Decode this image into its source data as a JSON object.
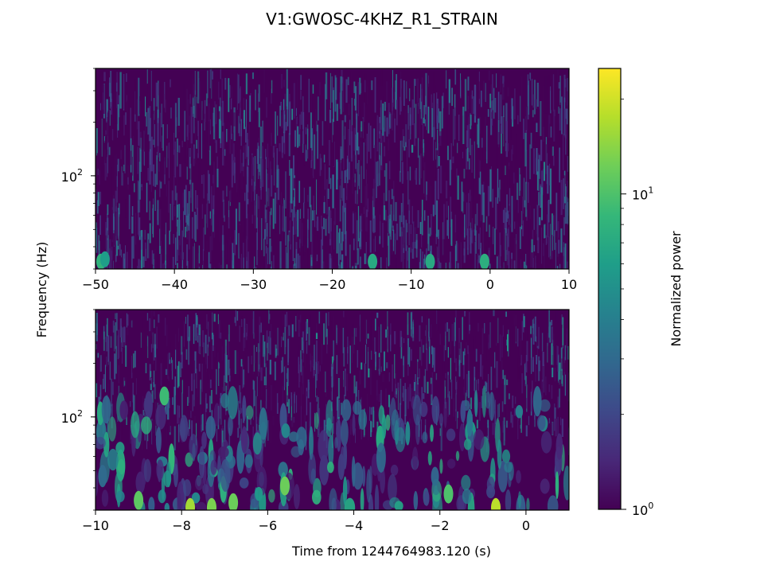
{
  "figure": {
    "title": "V1:GWOSC-4KHZ_R1_STRAIN",
    "ylabel": "Frequency (Hz)",
    "xlabel": "Time from 1244764983.120 (s)"
  },
  "colormap": {
    "name": "viridis",
    "stops": [
      "#440154",
      "#482878",
      "#3e4989",
      "#31688e",
      "#26828e",
      "#1f9e89",
      "#35b779",
      "#6ece58",
      "#b5de2b",
      "#fde725"
    ]
  },
  "colorbar": {
    "label": "Normalized power",
    "scale": "log",
    "range": [
      1,
      25
    ],
    "ticks": [
      {
        "value": 1,
        "base": "10",
        "exp": "0"
      },
      {
        "value": 10,
        "base": "10",
        "exp": "1"
      }
    ]
  },
  "chart_data": [
    {
      "type": "heatmap",
      "name": "top-panel",
      "x_range": [
        -50,
        10
      ],
      "y_range": [
        30,
        400
      ],
      "y_scale": "log",
      "x_ticks": [
        "−50",
        "−40",
        "−30",
        "−20",
        "−10",
        "0",
        "10"
      ],
      "x_tick_values": [
        -50,
        -40,
        -30,
        -20,
        -10,
        0,
        10
      ],
      "y_ticks": [
        {
          "value": 100,
          "base": "10",
          "exp": "2"
        }
      ],
      "texture": "fine-vertical-streaks",
      "mean_power": 1.6,
      "peak_power": 8,
      "hotspots": [
        {
          "t": -49.3,
          "f": 33,
          "power": 8
        },
        {
          "t": -48.8,
          "f": 34,
          "power": 6
        },
        {
          "t": -14.9,
          "f": 33,
          "power": 7
        },
        {
          "t": -7.6,
          "f": 33,
          "power": 7
        },
        {
          "t": -0.7,
          "f": 33,
          "power": 7.5
        }
      ]
    },
    {
      "type": "heatmap",
      "name": "bottom-panel",
      "x_range": [
        -10,
        1
      ],
      "y_range": [
        30,
        400
      ],
      "y_scale": "log",
      "x_ticks": [
        "−10",
        "−8",
        "−6",
        "−4",
        "−2",
        "0"
      ],
      "x_tick_values": [
        -10,
        -8,
        -6,
        -4,
        -2,
        0
      ],
      "y_ticks": [
        {
          "value": 100,
          "base": "10",
          "exp": "2"
        }
      ],
      "texture": "low-frequency-blobs",
      "mean_power": 2.2,
      "peak_power": 18,
      "hotspots": [
        {
          "t": -7.8,
          "f": 31,
          "power": 16
        },
        {
          "t": -7.3,
          "f": 31,
          "power": 13
        },
        {
          "t": -5.6,
          "f": 41,
          "power": 12
        },
        {
          "t": -0.7,
          "f": 31,
          "power": 18
        },
        {
          "t": -9.0,
          "f": 34,
          "power": 11
        },
        {
          "t": -1.8,
          "f": 37,
          "power": 10
        },
        {
          "t": -6.8,
          "f": 33,
          "power": 12
        },
        {
          "t": -8.4,
          "f": 131,
          "power": 9
        }
      ]
    }
  ]
}
